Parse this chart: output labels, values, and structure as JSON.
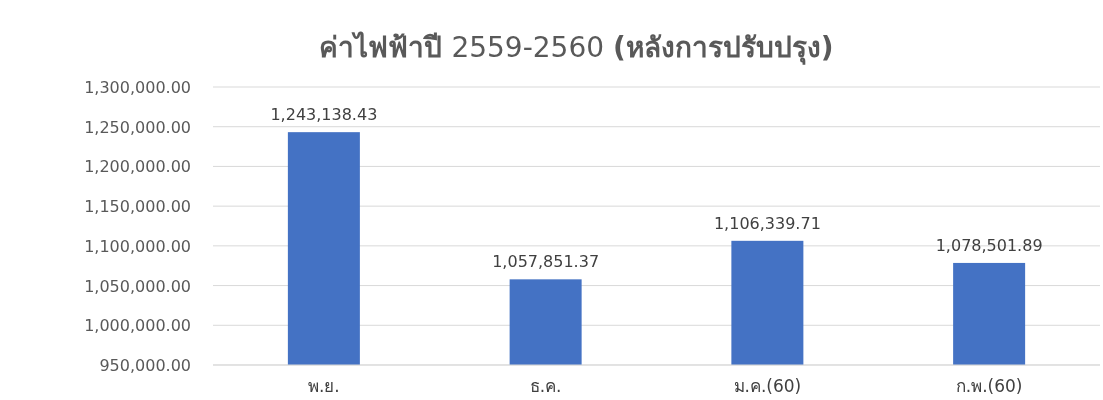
{
  "chart_data": {
    "type": "bar",
    "title": "**ค่าไฟฟ้าปี** 2559-2560 **(หลังการปรับปรุง)**",
    "categories": [
      "พ.ย.",
      "ธ.ค.",
      "ม.ค.(60)",
      "ก.พ.(60)"
    ],
    "values": [
      1243138.43,
      1057851.37,
      1106339.71,
      1078501.89
    ],
    "color": "#4472c4",
    "ylim": [
      950000,
      1300000
    ],
    "yticks": [
      {
        "value": 950000,
        "label": "950,000.00"
      },
      {
        "value": 1000000,
        "label": "1,000,000.00"
      },
      {
        "value": 1050000,
        "label": "1,050,000.00"
      },
      {
        "value": 1100000,
        "label": "1,100,000.00"
      },
      {
        "value": 1150000,
        "label": "1,150,000.00"
      },
      {
        "value": 1200000,
        "label": "1,200,000.00"
      },
      {
        "value": 1250000,
        "label": "1,250,000.00"
      },
      {
        "value": 1300000,
        "label": "1,300,000.00"
      }
    ],
    "grid": "y",
    "value_labels": [
      "1,243,138.43",
      "1,057,851.37",
      "1,106,339.71",
      "1,078,501.89"
    ]
  }
}
